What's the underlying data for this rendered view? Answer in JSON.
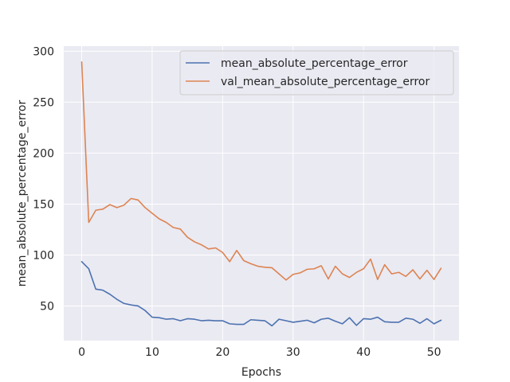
{
  "chart_data": {
    "type": "line",
    "title": "",
    "xlabel": "Epochs",
    "ylabel": "mean_absolute_percentage_error",
    "xlim": [
      -2.55,
      53.55
    ],
    "ylim": [
      16,
      305
    ],
    "x_ticks": [
      0,
      10,
      20,
      30,
      40,
      50
    ],
    "y_ticks": [
      50,
      100,
      150,
      200,
      250,
      300
    ],
    "grid": true,
    "legend_position": "top-right",
    "background_color": "#eaeaf2",
    "x": [
      0,
      1,
      2,
      3,
      4,
      5,
      6,
      7,
      8,
      9,
      10,
      11,
      12,
      13,
      14,
      15,
      16,
      17,
      18,
      19,
      20,
      21,
      22,
      23,
      24,
      25,
      26,
      27,
      28,
      29,
      30,
      31,
      32,
      33,
      34,
      35,
      36,
      37,
      38,
      39,
      40,
      41,
      42,
      43,
      44,
      45,
      46,
      47,
      48,
      49,
      50,
      51
    ],
    "series": [
      {
        "name": "mean_absolute_percentage_error",
        "color": "#4c72b0",
        "values": [
          93.5,
          86.5,
          66.5,
          65.5,
          61.5,
          56.5,
          52.5,
          51,
          50,
          45.5,
          39,
          38.5,
          37,
          37.5,
          35.5,
          37.5,
          37,
          35.5,
          36,
          35.5,
          35.5,
          32.5,
          32,
          32,
          36.5,
          36,
          35.5,
          30.5,
          37,
          35.5,
          34,
          35,
          36,
          33.5,
          37,
          38,
          35,
          32.5,
          38.5,
          31,
          37.5,
          37,
          39,
          34.5,
          34,
          34,
          38,
          37,
          33,
          37.5,
          32.5,
          36
        ]
      },
      {
        "name": "val_mean_absolute_percentage_error",
        "color": "#dd8452",
        "values": [
          289.5,
          132,
          144,
          145,
          149.5,
          146.5,
          149,
          155.5,
          154,
          146.5,
          141,
          135.5,
          132,
          127,
          125.5,
          117.5,
          113,
          110,
          106,
          107,
          102.5,
          93.5,
          104.5,
          94.5,
          91.5,
          89,
          88,
          87.5,
          81.5,
          75.5,
          81,
          82.5,
          86,
          86.5,
          89.5,
          76.5,
          89,
          81.5,
          78,
          83,
          86.5,
          96,
          76,
          90.5,
          81.5,
          83,
          79,
          85.5,
          76.5,
          85,
          76,
          87
        ]
      }
    ]
  }
}
